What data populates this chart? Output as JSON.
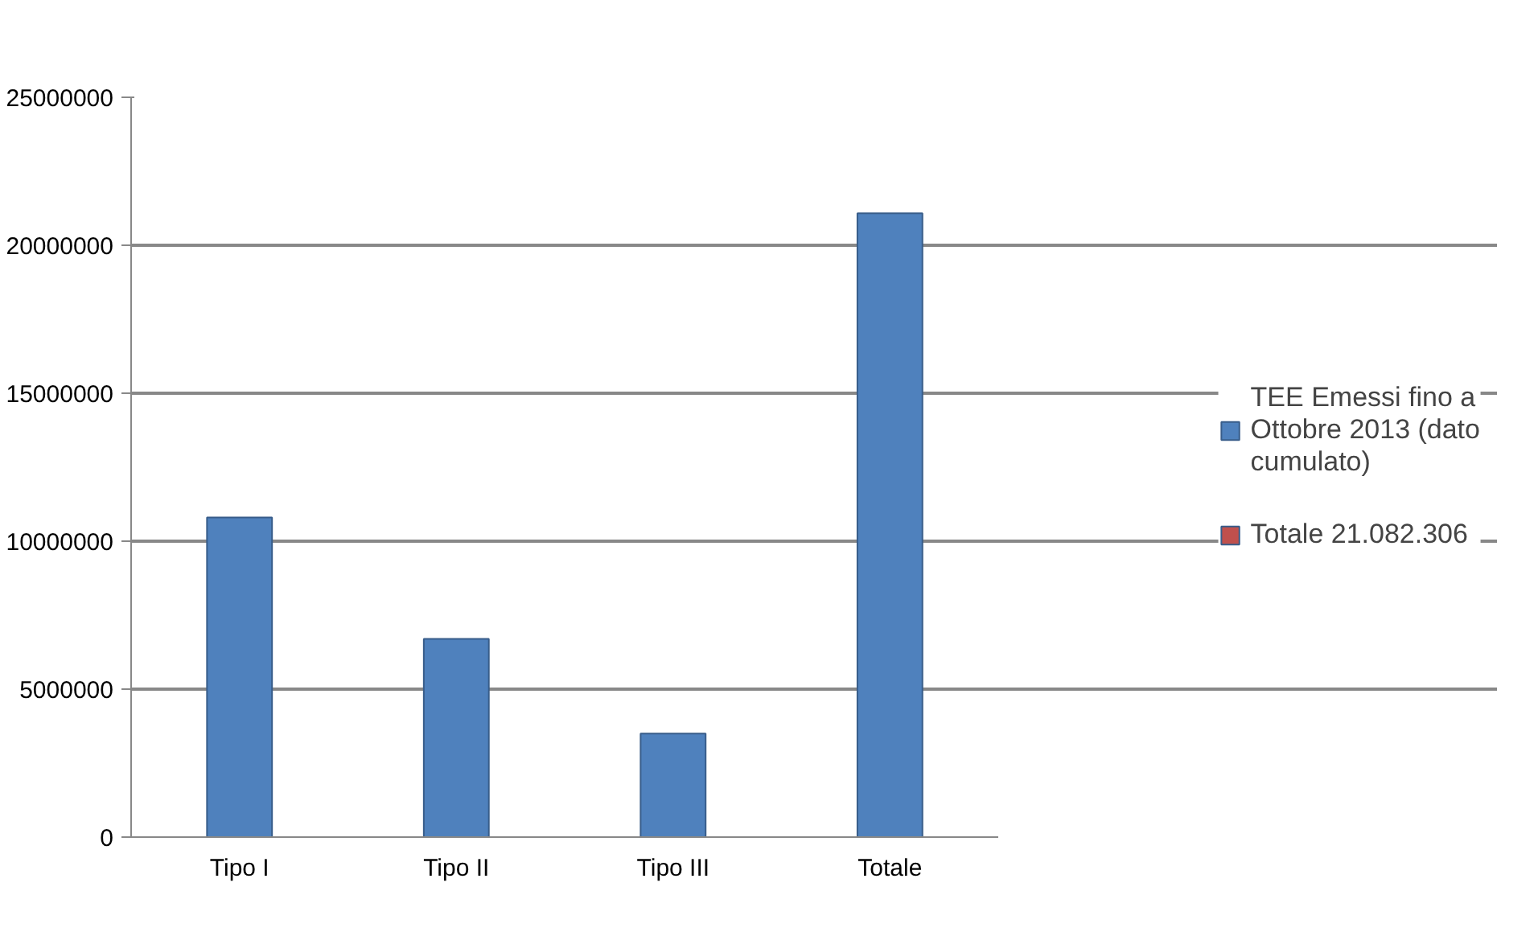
{
  "chart_data": {
    "type": "bar",
    "categories": [
      "Tipo I",
      "Tipo II",
      "Tipo III",
      "Totale"
    ],
    "series": [
      {
        "name": "TEE Emessi fino a Ottobre 2013 (dato cumulato)",
        "color": "#4f81bd",
        "values": [
          10800000,
          6700000,
          3500000,
          21082306
        ]
      },
      {
        "name": "Totale 21.082.306",
        "color": "#c0504d",
        "values": [
          null,
          null,
          null,
          null
        ]
      }
    ],
    "ylim": [
      0,
      25000000
    ],
    "yticks": [
      0,
      5000000,
      10000000,
      15000000,
      20000000,
      25000000
    ],
    "grid": "y",
    "legend": "right"
  }
}
